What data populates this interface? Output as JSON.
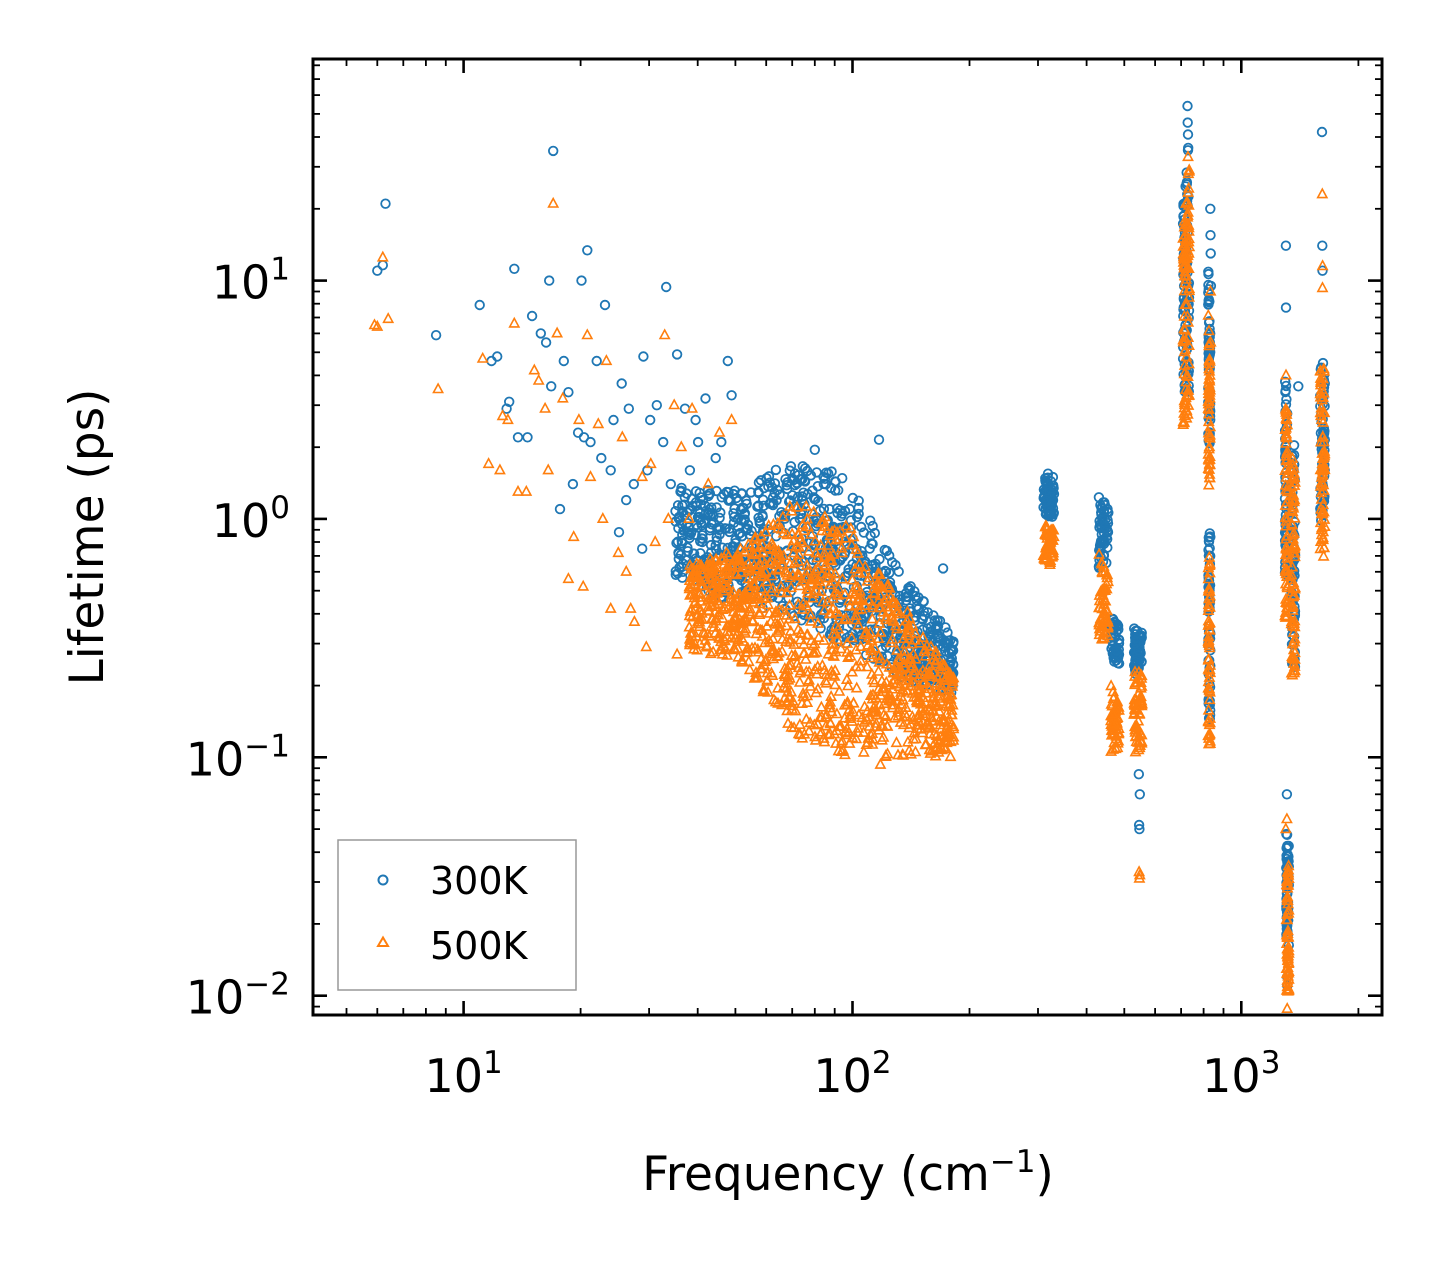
{
  "chart_data": {
    "type": "scatter",
    "title": "",
    "xlabel": "Frequency (cm",
    "xlabel_sup": "−1",
    "xlabel_suffix": ")",
    "ylabel": "Lifetime (ps)",
    "xscale": "log",
    "yscale": "log",
    "xlim": [
      4.1,
      2300
    ],
    "ylim": [
      0.0083,
      85
    ],
    "grid": false,
    "legend_position": "lower-left",
    "x_ticks": [
      {
        "value": 10,
        "base": "10",
        "exp": "1"
      },
      {
        "value": 100,
        "base": "10",
        "exp": "2"
      },
      {
        "value": 1000,
        "base": "10",
        "exp": "3"
      }
    ],
    "y_ticks": [
      {
        "value": 0.01,
        "base": "10",
        "exp": "−2"
      },
      {
        "value": 0.1,
        "base": "10",
        "exp": "−1"
      },
      {
        "value": 1,
        "base": "10",
        "exp": "0"
      },
      {
        "value": 10,
        "base": "10",
        "exp": "1"
      }
    ],
    "series": [
      {
        "name": "300K",
        "marker": "circle",
        "color": "#1f77b4",
        "points": [
          [
            6.0,
            11.0
          ],
          [
            6.2,
            11.6
          ],
          [
            6.3,
            21.0
          ],
          [
            8.5,
            5.9
          ],
          [
            11.0,
            7.9
          ],
          [
            11.8,
            4.6
          ],
          [
            12.2,
            4.8
          ],
          [
            12.9,
            2.9
          ],
          [
            13.1,
            3.1
          ],
          [
            13.5,
            11.2
          ],
          [
            13.8,
            2.2
          ],
          [
            14.6,
            2.2
          ],
          [
            15.0,
            7.1
          ],
          [
            15.8,
            6.0
          ],
          [
            16.3,
            5.5
          ],
          [
            16.6,
            10.0
          ],
          [
            16.8,
            3.6
          ],
          [
            17.0,
            35.0
          ],
          [
            17.7,
            1.1
          ],
          [
            18.1,
            4.6
          ],
          [
            18.6,
            3.4
          ],
          [
            19.1,
            1.4
          ],
          [
            19.7,
            2.3
          ],
          [
            20.1,
            10.0
          ],
          [
            20.4,
            2.2
          ],
          [
            20.8,
            13.4
          ],
          [
            21.2,
            2.1
          ],
          [
            22.0,
            4.6
          ],
          [
            22.6,
            1.8
          ],
          [
            23.1,
            7.9
          ],
          [
            23.9,
            1.6
          ],
          [
            24.3,
            2.6
          ],
          [
            25.1,
            0.88
          ],
          [
            25.5,
            3.7
          ],
          [
            26.2,
            1.2
          ],
          [
            26.6,
            2.9
          ],
          [
            27.4,
            1.4
          ],
          [
            28.8,
            0.75
          ],
          [
            29.0,
            4.8
          ],
          [
            29.7,
            1.6
          ],
          [
            30.2,
            2.6
          ],
          [
            31.4,
            3.0
          ],
          [
            32.6,
            2.1
          ],
          [
            33.2,
            9.4
          ],
          [
            34.1,
            1.4
          ],
          [
            35.4,
            4.9
          ],
          [
            36.2,
            1.3
          ],
          [
            37.1,
            2.9
          ],
          [
            38.2,
            1.6
          ],
          [
            39.5,
            2.6
          ],
          [
            40.1,
            2.1
          ],
          [
            41.9,
            3.2
          ],
          [
            44.5,
            1.8
          ],
          [
            46.0,
            2.1
          ],
          [
            47.8,
            4.6
          ],
          [
            48.9,
            3.3
          ]
        ],
        "bands": [
          {
            "x_range": [
              35,
              182
            ],
            "y_top": [
              1.4,
              1.3,
              1.7,
              1.6,
              0.62,
              0.32
            ],
            "y_bottom": [
              0.55,
              0.45,
              0.4,
              0.3,
              0.22,
              0.18
            ]
          },
          {
            "x_range": [
              310,
              330
            ],
            "y_top": [
              1.6,
              1.5
            ],
            "y_bottom": [
              1.05,
              1.0
            ]
          },
          {
            "x_range": [
              430,
              455
            ],
            "y_top": [
              1.28,
              1.1
            ],
            "y_bottom": [
              0.62,
              0.65
            ]
          },
          {
            "x_range": [
              462,
              485
            ],
            "y_top": [
              0.4,
              0.36
            ],
            "y_bottom": [
              0.26,
              0.24
            ]
          },
          {
            "x_range": [
              530,
              555
            ],
            "y_top": [
              0.35,
              0.34
            ],
            "y_bottom": [
              0.21,
              0.25
            ]
          },
          {
            "x_range": [
              708,
              735
            ],
            "y_top": [
              22,
              40
            ],
            "y_bottom": [
              3.5,
              3.2
            ]
          },
          {
            "x_range": [
              822,
              832
            ],
            "y_top": [
              12,
              6
            ],
            "y_bottom": [
              2.2,
              1.8
            ]
          },
          {
            "x_range": [
              822,
              832
            ],
            "y_top": [
              1.0,
              0.9
            ],
            "y_bottom": [
              0.15,
              0.14
            ]
          },
          {
            "x_range": [
              1295,
              1315
            ],
            "y_top": [
              4.2,
              3.0
            ],
            "y_bottom": [
              0.55,
              0.6
            ]
          },
          {
            "x_range": [
              1345,
              1375
            ],
            "y_top": [
              2.2,
              2.0
            ],
            "y_bottom": [
              0.25,
              0.23
            ]
          },
          {
            "x_range": [
              1595,
              1640
            ],
            "y_top": [
              5.3,
              5.1
            ],
            "y_bottom": [
              0.95,
              1.1
            ]
          },
          {
            "x_range": [
              1305,
              1325
            ],
            "y_top": [
              0.048,
              0.046
            ],
            "y_bottom": [
              0.018,
              0.016
            ]
          }
        ],
        "outliers": [
          [
            727,
            54
          ],
          [
            728,
            46
          ],
          [
            729,
            41
          ],
          [
            730,
            36
          ],
          [
            832,
            20
          ],
          [
            833,
            15.5
          ],
          [
            834,
            13
          ],
          [
            835,
            9.5
          ],
          [
            1302,
            14
          ],
          [
            1303,
            7.7
          ],
          [
            1612,
            42
          ],
          [
            1615,
            14
          ],
          [
            1617,
            11
          ],
          [
            545,
            0.085
          ],
          [
            548,
            0.07
          ],
          [
            546,
            0.052
          ],
          [
            547,
            0.05
          ],
          [
            1310,
            0.07
          ],
          [
            1312,
            0.012
          ],
          [
            1313,
            0.011
          ],
          [
            117,
            2.15
          ],
          [
            80,
            1.95
          ],
          [
            171,
            0.62
          ],
          [
            1401,
            3.6
          ]
        ]
      },
      {
        "name": "500K",
        "marker": "triangle",
        "color": "#ff7f0e",
        "points": [
          [
            5.9,
            6.5
          ],
          [
            6.0,
            6.4
          ],
          [
            6.2,
            12.5
          ],
          [
            6.4,
            6.9
          ],
          [
            8.6,
            3.5
          ],
          [
            11.2,
            4.7
          ],
          [
            11.6,
            1.7
          ],
          [
            12.4,
            1.6
          ],
          [
            12.6,
            2.7
          ],
          [
            13.0,
            2.6
          ],
          [
            13.5,
            6.6
          ],
          [
            13.8,
            1.3
          ],
          [
            14.5,
            1.3
          ],
          [
            15.2,
            4.2
          ],
          [
            15.6,
            3.8
          ],
          [
            16.2,
            2.9
          ],
          [
            16.5,
            1.6
          ],
          [
            17.0,
            21.0
          ],
          [
            17.4,
            6.0
          ],
          [
            18.0,
            3.2
          ],
          [
            18.6,
            0.56
          ],
          [
            19.2,
            0.84
          ],
          [
            19.8,
            2.6
          ],
          [
            20.3,
            0.52
          ],
          [
            20.8,
            5.9
          ],
          [
            21.2,
            1.5
          ],
          [
            22.2,
            2.5
          ],
          [
            22.8,
            1.0
          ],
          [
            23.3,
            4.6
          ],
          [
            23.9,
            0.42
          ],
          [
            25.0,
            0.72
          ],
          [
            25.6,
            2.2
          ],
          [
            26.2,
            0.6
          ],
          [
            26.9,
            0.42
          ],
          [
            27.5,
            0.37
          ],
          [
            28.8,
            1.5
          ],
          [
            29.5,
            0.29
          ],
          [
            30.3,
            1.7
          ],
          [
            31.1,
            0.8
          ],
          [
            32.9,
            5.9
          ],
          [
            33.6,
            1.0
          ],
          [
            34.8,
            3.0
          ],
          [
            35.4,
            0.27
          ],
          [
            36.3,
            2.0
          ],
          [
            38.0,
            1.0
          ],
          [
            38.7,
            2.9
          ],
          [
            40.5,
            0.38
          ],
          [
            42.6,
            1.4
          ],
          [
            45.5,
            2.3
          ],
          [
            48.9,
            2.6
          ],
          [
            50.5,
            0.45
          ],
          [
            62.0,
            0.28
          ],
          [
            68.5,
            0.22
          ]
        ],
        "bands": [
          {
            "x_range": [
              38,
              182
            ],
            "y_top": [
              0.65,
              0.75,
              1.2,
              0.95,
              0.45,
              0.22
            ],
            "y_bottom": [
              0.28,
              0.25,
              0.12,
              0.1,
              0.1,
              0.1
            ]
          },
          {
            "x_range": [
              310,
              330
            ],
            "y_top": [
              0.95,
              0.9
            ],
            "y_bottom": [
              0.65,
              0.63
            ]
          },
          {
            "x_range": [
              430,
              455
            ],
            "y_top": [
              0.75,
              0.6
            ],
            "y_bottom": [
              0.3,
              0.32
            ]
          },
          {
            "x_range": [
              462,
              485
            ],
            "y_top": [
              0.2,
              0.17
            ],
            "y_bottom": [
              0.1,
              0.11
            ]
          },
          {
            "x_range": [
              530,
              555
            ],
            "y_top": [
              0.24,
              0.22
            ],
            "y_bottom": [
              0.1,
              0.11
            ]
          },
          {
            "x_range": [
              708,
              735
            ],
            "y_top": [
              16,
              30
            ],
            "y_bottom": [
              2.4,
              2.5
            ]
          },
          {
            "x_range": [
              822,
              832
            ],
            "y_top": [
              7.5,
              4.5
            ],
            "y_bottom": [
              1.4,
              1.3
            ]
          },
          {
            "x_range": [
              822,
              832
            ],
            "y_top": [
              0.8,
              0.7
            ],
            "y_bottom": [
              0.11,
              0.1
            ]
          },
          {
            "x_range": [
              1295,
              1315
            ],
            "y_top": [
              3.5,
              2.5
            ],
            "y_bottom": [
              0.35,
              0.4
            ]
          },
          {
            "x_range": [
              1345,
              1375
            ],
            "y_top": [
              2.0,
              1.6
            ],
            "y_bottom": [
              0.2,
              0.21
            ]
          },
          {
            "x_range": [
              1595,
              1640
            ],
            "y_top": [
              4.9,
              4.5
            ],
            "y_bottom": [
              0.65,
              0.7
            ]
          },
          {
            "x_range": [
              1305,
              1325
            ],
            "y_top": [
              0.04,
              0.038
            ],
            "y_bottom": [
              0.01,
              0.0095
            ]
          }
        ],
        "outliers": [
          [
            729,
            33
          ],
          [
            731,
            28
          ],
          [
            1615,
            23
          ],
          [
            1617,
            9.3
          ],
          [
            1618,
            11.5
          ],
          [
            833,
            9.0
          ],
          [
            834,
            5.5
          ],
          [
            1303,
            4.0
          ],
          [
            1301,
            0.05
          ],
          [
            1310,
            0.055
          ],
          [
            546,
            0.033
          ],
          [
            547,
            0.031
          ],
          [
            548,
            0.032
          ],
          [
            1312,
            0.0088
          ],
          [
            118,
            0.093
          ]
        ]
      }
    ]
  }
}
